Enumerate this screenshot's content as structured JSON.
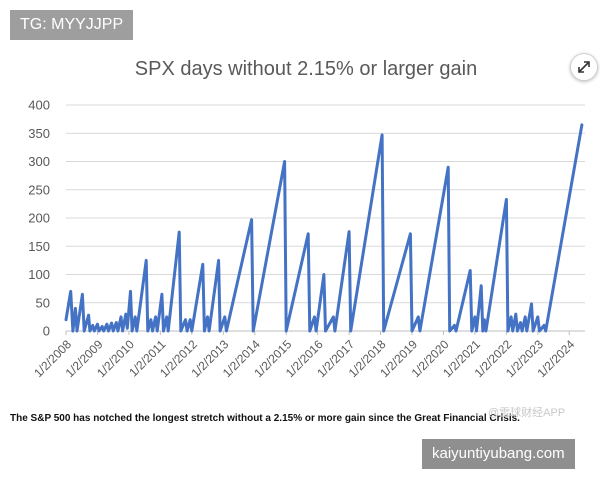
{
  "overlay": {
    "tag_text": "TG: MYYJJPP",
    "url_text": "kaiyuntiyubang.com",
    "watermark_text": "@雪球财经APP",
    "expand_icon": "expand-icon"
  },
  "caption": "The S&P 500 has notched the longest stretch without a 2.15% or more gain since the Great Financial Crisis.",
  "chart_data": {
    "type": "line",
    "title": "SPX days without 2.15% or larger gain",
    "xlabel": "",
    "ylabel": "",
    "ylim": [
      0,
      400
    ],
    "yticks": [
      0,
      50,
      100,
      150,
      200,
      250,
      300,
      350,
      400
    ],
    "xticks": [
      "1/2/2008",
      "1/2/2009",
      "1/2/2010",
      "1/2/2011",
      "1/2/2012",
      "1/2/2013",
      "1/2/2014",
      "1/2/2015",
      "1/2/2016",
      "1/2/2017",
      "1/2/2018",
      "1/2/2019",
      "1/2/2020",
      "1/2/2021",
      "1/2/2022",
      "1/2/2023",
      "1/2/2024"
    ],
    "x_range": [
      2008.0,
      2024.5
    ],
    "grid": true,
    "line_color": "#4472c4",
    "series": [
      {
        "values": [
          [
            2008.0,
            20
          ],
          [
            2008.15,
            70
          ],
          [
            2008.22,
            0
          ],
          [
            2008.3,
            40
          ],
          [
            2008.35,
            0
          ],
          [
            2008.52,
            65
          ],
          [
            2008.58,
            0
          ],
          [
            2008.72,
            28
          ],
          [
            2008.76,
            0
          ],
          [
            2008.85,
            10
          ],
          [
            2008.9,
            0
          ],
          [
            2009.0,
            12
          ],
          [
            2009.05,
            0
          ],
          [
            2009.15,
            8
          ],
          [
            2009.2,
            0
          ],
          [
            2009.3,
            12
          ],
          [
            2009.35,
            0
          ],
          [
            2009.45,
            14
          ],
          [
            2009.5,
            0
          ],
          [
            2009.6,
            15
          ],
          [
            2009.65,
            0
          ],
          [
            2009.75,
            25
          ],
          [
            2009.8,
            0
          ],
          [
            2009.9,
            30
          ],
          [
            2009.95,
            5
          ],
          [
            2010.05,
            70
          ],
          [
            2010.1,
            0
          ],
          [
            2010.2,
            25
          ],
          [
            2010.25,
            0
          ],
          [
            2010.55,
            125
          ],
          [
            2010.6,
            0
          ],
          [
            2010.7,
            20
          ],
          [
            2010.75,
            0
          ],
          [
            2010.85,
            25
          ],
          [
            2010.9,
            0
          ],
          [
            2011.05,
            65
          ],
          [
            2011.1,
            0
          ],
          [
            2011.2,
            25
          ],
          [
            2011.25,
            0
          ],
          [
            2011.6,
            175
          ],
          [
            2011.65,
            0
          ],
          [
            2011.8,
            20
          ],
          [
            2011.85,
            0
          ],
          [
            2011.95,
            20
          ],
          [
            2012.0,
            0
          ],
          [
            2012.35,
            118
          ],
          [
            2012.4,
            0
          ],
          [
            2012.5,
            25
          ],
          [
            2012.55,
            0
          ],
          [
            2012.85,
            125
          ],
          [
            2012.9,
            0
          ],
          [
            2013.05,
            25
          ],
          [
            2013.1,
            0
          ],
          [
            2013.9,
            197
          ],
          [
            2013.95,
            0
          ],
          [
            2014.95,
            300
          ],
          [
            2015.0,
            0
          ],
          [
            2015.7,
            172
          ],
          [
            2015.75,
            0
          ],
          [
            2015.9,
            25
          ],
          [
            2015.95,
            0
          ],
          [
            2016.2,
            100
          ],
          [
            2016.25,
            0
          ],
          [
            2016.5,
            25
          ],
          [
            2016.55,
            0
          ],
          [
            2017.0,
            176
          ],
          [
            2017.05,
            0
          ],
          [
            2018.05,
            347
          ],
          [
            2018.1,
            0
          ],
          [
            2018.95,
            172
          ],
          [
            2019.0,
            0
          ],
          [
            2019.2,
            25
          ],
          [
            2019.25,
            0
          ],
          [
            2020.15,
            290
          ],
          [
            2020.2,
            0
          ],
          [
            2020.35,
            10
          ],
          [
            2020.4,
            0
          ],
          [
            2020.85,
            107
          ],
          [
            2020.9,
            0
          ],
          [
            2021.0,
            25
          ],
          [
            2021.05,
            0
          ],
          [
            2021.2,
            80
          ],
          [
            2021.25,
            0
          ],
          [
            2021.3,
            20
          ],
          [
            2021.35,
            0
          ],
          [
            2022.0,
            233
          ],
          [
            2022.05,
            0
          ],
          [
            2022.15,
            25
          ],
          [
            2022.2,
            0
          ],
          [
            2022.3,
            30
          ],
          [
            2022.35,
            0
          ],
          [
            2022.45,
            15
          ],
          [
            2022.5,
            0
          ],
          [
            2022.6,
            25
          ],
          [
            2022.65,
            0
          ],
          [
            2022.8,
            48
          ],
          [
            2022.85,
            0
          ],
          [
            2023.0,
            25
          ],
          [
            2023.05,
            0
          ],
          [
            2023.2,
            10
          ],
          [
            2023.25,
            0
          ],
          [
            2024.4,
            365
          ]
        ]
      }
    ]
  }
}
